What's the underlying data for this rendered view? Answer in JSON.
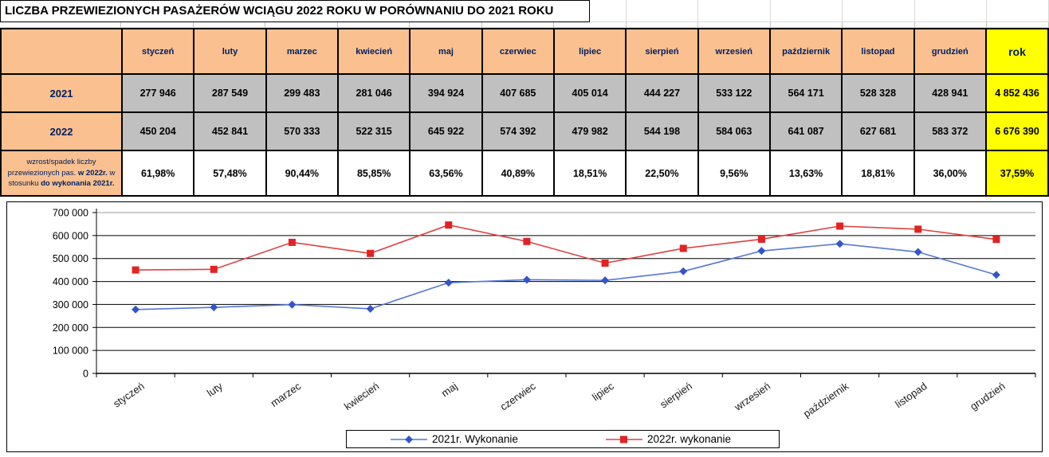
{
  "title": "LICZBA PRZEWIEZIONYCH PASAŻERÓW WCIĄGU 2022 ROKU W PORÓWNANIU DO 2021 ROKU",
  "table": {
    "month_columns": [
      "styczeń",
      "luty",
      "marzec",
      "kwiecień",
      "maj",
      "czerwiec",
      "lipiec",
      "sierpień",
      "wrzesień",
      "październik",
      "listopad",
      "grudzień"
    ],
    "year_column": "rok",
    "rows": [
      {
        "label": "2021",
        "values": [
          "277 946",
          "287 549",
          "299 483",
          "281 046",
          "394 924",
          "407 685",
          "405 014",
          "444 227",
          "533 122",
          "564 171",
          "528 328",
          "428 941"
        ],
        "total": "4 852 436"
      },
      {
        "label": "2022",
        "values": [
          "450 204",
          "452 841",
          "570 333",
          "522 315",
          "645 922",
          "574 392",
          "479 982",
          "544 198",
          "584 063",
          "641 087",
          "627 681",
          "583 372"
        ],
        "total": "6 676 390"
      }
    ],
    "percent_row": {
      "label_parts": [
        {
          "text": "wzrost/spadek liczby przewiezionych pas. ",
          "bold": false
        },
        {
          "text": "w 2022r.",
          "bold": true
        },
        {
          "text": " w stosunku ",
          "bold": false
        },
        {
          "text": "do wykonania 2021r.",
          "bold": true
        }
      ],
      "values": [
        "61,98%",
        "57,48%",
        "90,44%",
        "85,85%",
        "63,56%",
        "40,89%",
        "18,51%",
        "22,50%",
        "9,56%",
        "13,63%",
        "18,81%",
        "36,00%"
      ],
      "total": "37,59%"
    }
  },
  "colors": {
    "header_fill": "#FAC090",
    "value_fill": "#C0C0C0",
    "highlight_fill": "#FFFF00",
    "header_text": "#002060",
    "border": "#000000",
    "series_2021": "#3355CC",
    "series_2022": "#E32222"
  },
  "chart_data": {
    "type": "line",
    "title": "",
    "xlabel": "",
    "ylabel": "",
    "categories": [
      "styczeń",
      "luty",
      "marzec",
      "kwiecień",
      "maj",
      "czerwiec",
      "lipiec",
      "sierpień",
      "wrzesień",
      "październik",
      "listopad",
      "grudzień"
    ],
    "series": [
      {
        "name": "2021r. Wykonanie",
        "marker": "diamond",
        "color": "#3355CC",
        "line_color": "#5577D5",
        "values": [
          277946,
          287549,
          299483,
          281046,
          394924,
          407685,
          405014,
          444227,
          533122,
          564171,
          528328,
          428941
        ]
      },
      {
        "name": "2022r. wykonanie",
        "marker": "square",
        "color": "#E32222",
        "line_color": "#E04040",
        "values": [
          450204,
          452841,
          570333,
          522315,
          645922,
          574392,
          479982,
          544198,
          584063,
          641087,
          627681,
          583372
        ]
      }
    ],
    "ylim": [
      0,
      700000
    ],
    "ytick_step": 100000,
    "ytick_labels": [
      "0",
      "100 000",
      "200 000",
      "300 000",
      "400 000",
      "500 000",
      "600 000",
      "700 000"
    ],
    "grid": true,
    "legend_position": "bottom"
  }
}
